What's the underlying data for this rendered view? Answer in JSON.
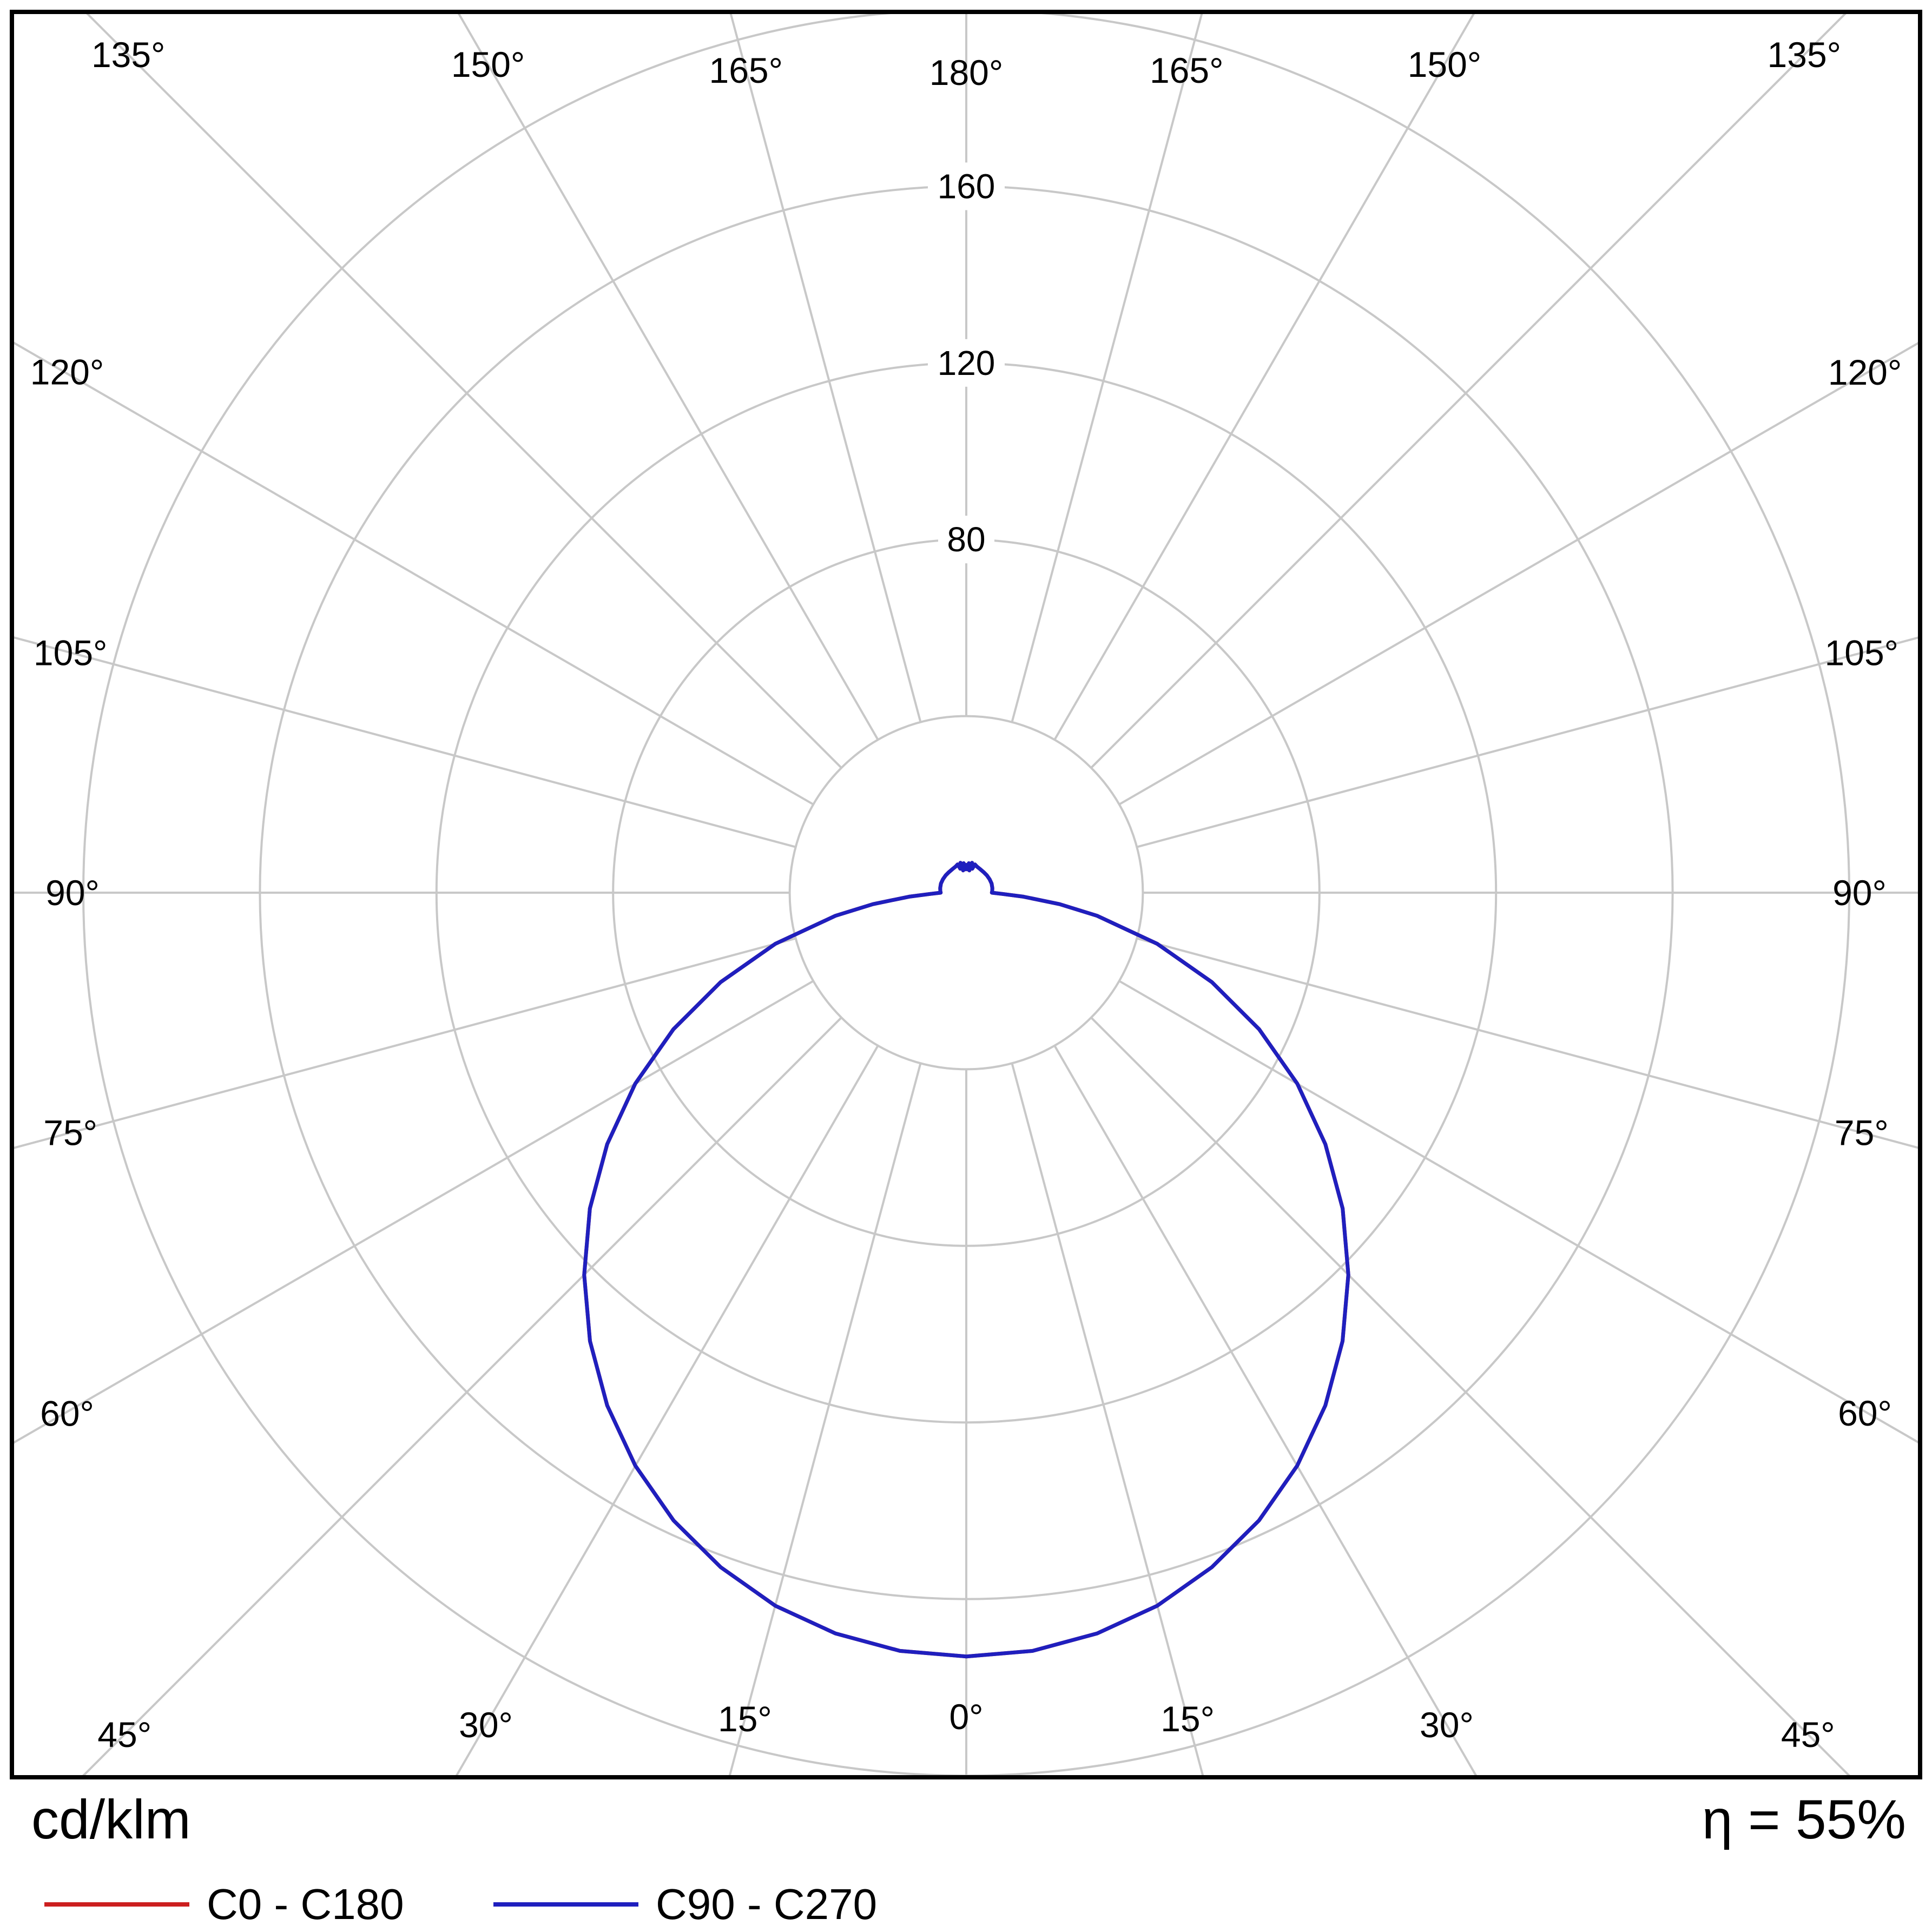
{
  "chart_data": {
    "type": "line",
    "subtype": "polar-luminous-intensity",
    "title": "",
    "units_label": "cd/klm",
    "efficiency_label": "η = 55%",
    "grid_color": "#c8c8c8",
    "border_color": "#000000",
    "angle_step_deg": 15,
    "angle_labels": [
      "0°",
      "15°",
      "30°",
      "45°",
      "60°",
      "75°",
      "90°",
      "105°",
      "120°",
      "135°",
      "150°",
      "165°",
      "180°"
    ],
    "radial_ticks": [
      40,
      80,
      120,
      160,
      200
    ],
    "radial_tick_labels": [
      {
        "value": 80,
        "label": "80"
      },
      {
        "value": 120,
        "label": "120"
      },
      {
        "value": 160,
        "label": "160"
      }
    ],
    "rmax": 200,
    "legend_position": "bottom-left",
    "series": [
      {
        "name": "C0 - C180",
        "color": "#cc1f1f",
        "points_gamma_cd": [
          [
            0,
            173
          ],
          [
            5,
            172.4
          ],
          [
            10,
            170.4
          ],
          [
            15,
            167.2
          ],
          [
            20,
            162.6
          ],
          [
            25,
            156.9
          ],
          [
            30,
            149.9
          ],
          [
            35,
            141.8
          ],
          [
            40,
            132.6
          ],
          [
            45,
            122.4
          ],
          [
            50,
            111.3
          ],
          [
            55,
            99.3
          ],
          [
            60,
            86.6
          ],
          [
            65,
            73.2
          ],
          [
            70,
            59.2
          ],
          [
            75,
            44.8
          ],
          [
            80,
            30.1
          ],
          [
            83,
            21.3
          ],
          [
            86,
            13
          ],
          [
            88,
            8.2
          ],
          [
            90,
            5.8
          ],
          [
            94,
            5.9
          ],
          [
            100,
            6
          ],
          [
            110,
            6.1
          ],
          [
            120,
            6.1
          ],
          [
            130,
            6.1
          ],
          [
            140,
            6.1
          ],
          [
            150,
            6.2
          ],
          [
            158,
            6.4
          ],
          [
            163,
            6.7
          ],
          [
            166,
            5.6
          ],
          [
            169,
            6.9
          ],
          [
            172,
            5.1
          ],
          [
            175,
            6.7
          ],
          [
            178,
            5.3
          ],
          [
            180,
            6.3
          ]
        ]
      },
      {
        "name": "C90 - C270",
        "color": "#1f1fbe",
        "points_gamma_cd": [
          [
            0,
            173
          ],
          [
            5,
            172.4
          ],
          [
            10,
            170.4
          ],
          [
            15,
            167.2
          ],
          [
            20,
            162.6
          ],
          [
            25,
            156.9
          ],
          [
            30,
            149.9
          ],
          [
            35,
            141.8
          ],
          [
            40,
            132.6
          ],
          [
            45,
            122.4
          ],
          [
            50,
            111.3
          ],
          [
            55,
            99.3
          ],
          [
            60,
            86.6
          ],
          [
            65,
            73.2
          ],
          [
            70,
            59.2
          ],
          [
            75,
            44.8
          ],
          [
            80,
            30.1
          ],
          [
            83,
            21.3
          ],
          [
            86,
            13
          ],
          [
            88,
            8.2
          ],
          [
            90,
            5.8
          ],
          [
            94,
            5.9
          ],
          [
            100,
            6
          ],
          [
            110,
            6.1
          ],
          [
            120,
            6.1
          ],
          [
            130,
            6.1
          ],
          [
            140,
            6.1
          ],
          [
            150,
            6.2
          ],
          [
            158,
            6.4
          ],
          [
            163,
            6.7
          ],
          [
            166,
            5.6
          ],
          [
            169,
            6.9
          ],
          [
            172,
            5.1
          ],
          [
            175,
            6.7
          ],
          [
            178,
            5.3
          ],
          [
            180,
            6.3
          ]
        ]
      }
    ]
  }
}
